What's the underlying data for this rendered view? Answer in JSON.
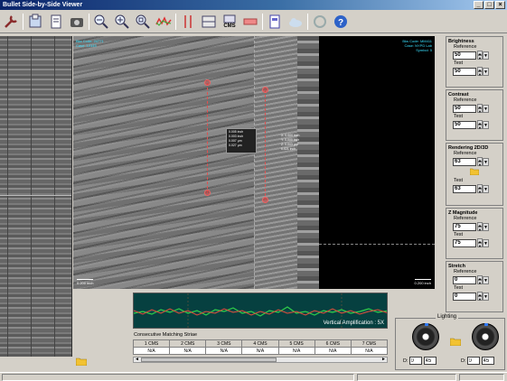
{
  "window": {
    "title": "Bullet Side-by-Side Viewer",
    "minimize": "_",
    "maximize": "□",
    "close": "×"
  },
  "toolbar": {
    "cms_label": "CMS"
  },
  "viewer": {
    "left_info": [
      "Bks Code: 24771",
      "Case: 12345"
    ],
    "right_info": [
      "Bks Code: MM411",
      "Case: NYPD Lab",
      "Symbol: 5"
    ],
    "left_scale": "0.200 inch",
    "right_scale": "0.200 inch",
    "measure_left": [
      "0.005 inch",
      "0.003 inch",
      "0.007 µm",
      "0.027 µm"
    ],
    "measure_right": [
      "X: 0.000 inch",
      "Y: 0.000 inch",
      "Z: 0.003 µm",
      "0.021 inch"
    ]
  },
  "graph": {
    "vertical_amplification": "Vertical Amplification : 5X"
  },
  "cms": {
    "title": "Consecutive Matching Striae",
    "headers": [
      "1 CMS",
      "2 CMS",
      "3 CMS",
      "4 CMS",
      "5 CMS",
      "6 CMS",
      "7 CMS"
    ],
    "values": [
      "N/A",
      "N/A",
      "N/A",
      "N/A",
      "N/A",
      "N/A",
      "N/A"
    ],
    "scroll_left": "◄",
    "scroll_right": "►"
  },
  "panels": {
    "brightness": {
      "title": "Brightness",
      "ref_label": "Reference",
      "ref_value": "50",
      "test_label": "Test",
      "test_value": "50"
    },
    "contrast": {
      "title": "Contrast",
      "ref_label": "Reference",
      "ref_value": "50",
      "test_label": "Test",
      "test_value": "50"
    },
    "rendering": {
      "title": "Rendering 2D/3D",
      "ref_label": "Reference",
      "ref_value": "63",
      "test_label": "Test",
      "test_value": "63"
    },
    "zmag": {
      "title": "Z Magnitude",
      "ref_label": "Reference",
      "ref_value": "75",
      "test_label": "Test",
      "test_value": "75"
    },
    "stretch": {
      "title": "Stretch",
      "ref_label": "Reference",
      "ref_value": "0",
      "test_label": "Test",
      "test_value": "0"
    }
  },
  "lighting": {
    "title": "Lighting",
    "left_d_label": "D:",
    "left_d": "0",
    "left_angle": "45",
    "right_d_label": "D:",
    "right_d": "0",
    "right_angle": "45"
  },
  "colors": {
    "accent": "#38e0ff",
    "graph_bg": "#064040",
    "graph_green": "#2fd04a",
    "graph_red": "#e24d3b",
    "measure": "#e05050"
  }
}
